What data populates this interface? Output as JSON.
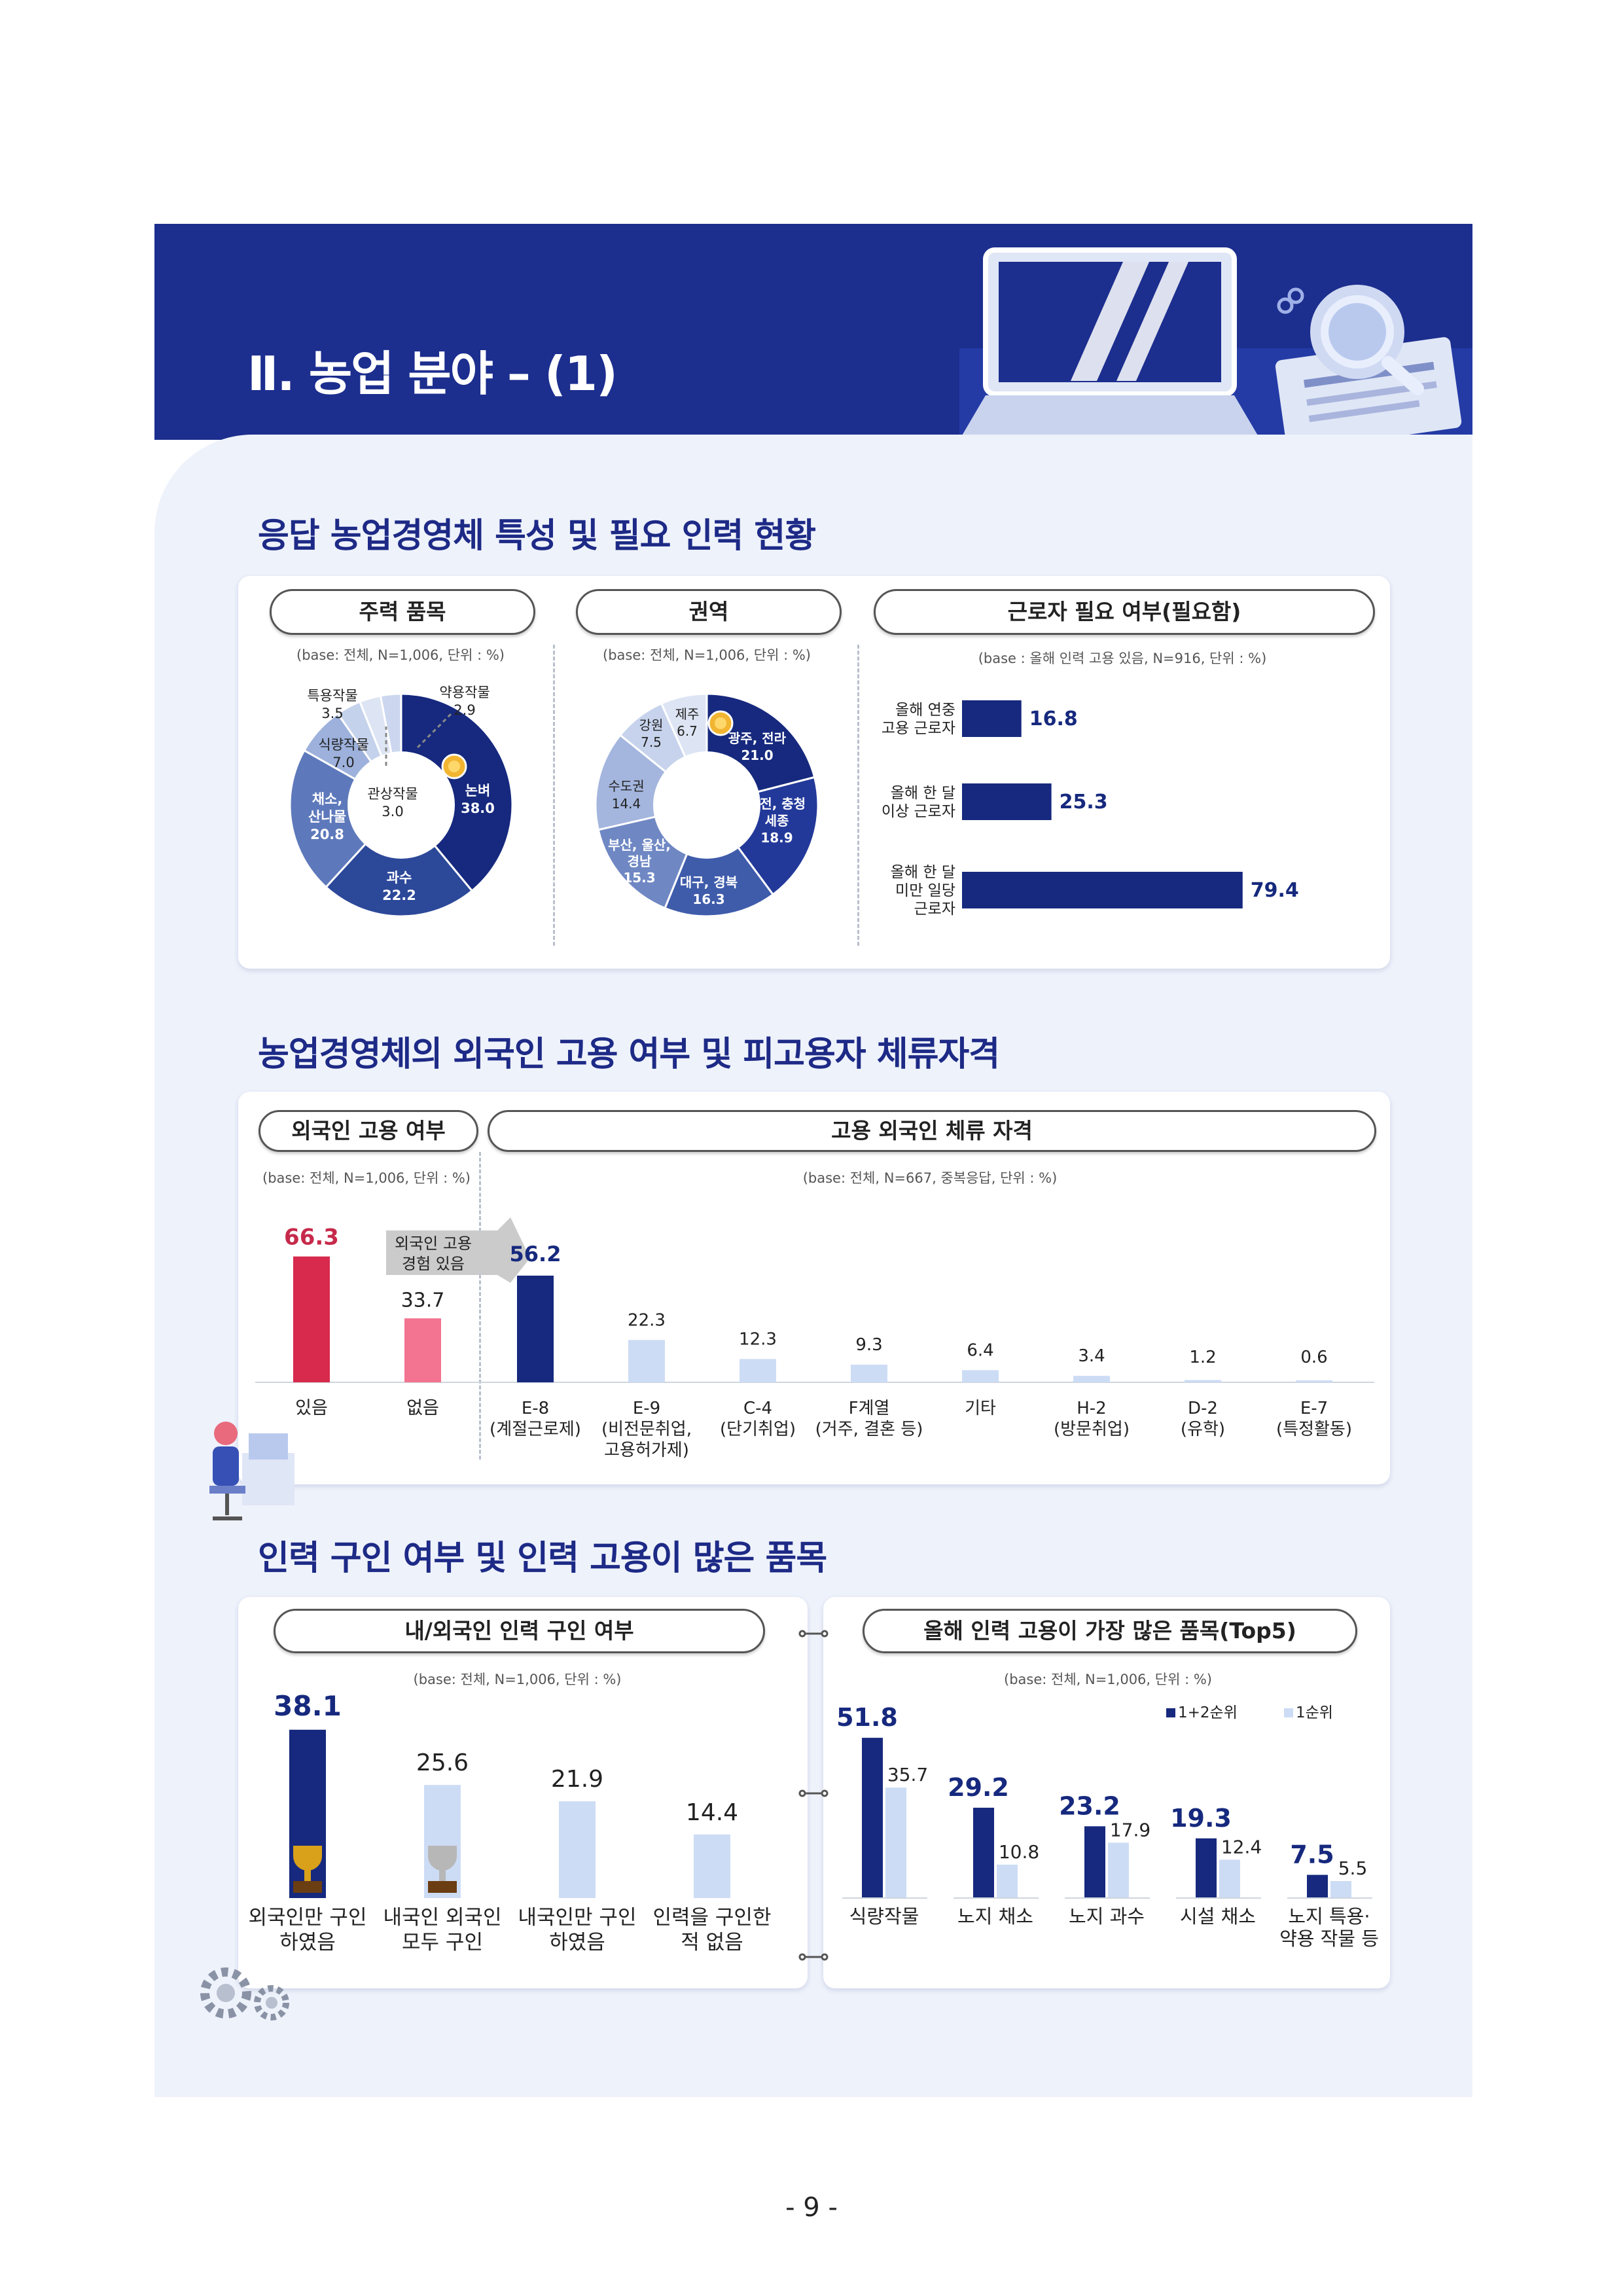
{
  "header": {
    "title": "Ⅱ. 농업 분야 – (1)"
  },
  "sections": {
    "s1": "응답 농업경영체 특성 및 필요 인력 현황",
    "s2": "농업경영체의 외국인 고용 여부 및 피고용자 체류자격",
    "s3": "인력 구인 여부 및 인력 고용이 많은 품목"
  },
  "panels": {
    "p1": {
      "title": "주력 품목",
      "base": "(base: 전체,  N=1,006, 단위 : %)"
    },
    "p2": {
      "title": "권역",
      "base": "(base: 전체,  N=1,006, 단위 : %)"
    },
    "p3": {
      "title": "근로자 필요 여부(필요함)",
      "base": "(base : 올해 인력 고용 있음, N=916, 단위 : %)"
    },
    "p4": {
      "title": "외국인 고용 여부",
      "base": "(base: 전체, N=1,006, 단위 : %)"
    },
    "p5": {
      "title": "고용 외국인 체류 자격",
      "base": "(base: 전체, N=667, 중복응답, 단위 : %)"
    },
    "p6": {
      "title": "내/외국인 인력 구인 여부",
      "base": "(base: 전체, N=1,006, 단위 : %)"
    },
    "p7": {
      "title": "올해 인력 고용이 가장 많은 품목(Top5)",
      "base": "(base: 전체, N=1,006, 단위 : %)"
    }
  },
  "chart_data": [
    {
      "type": "pie",
      "title": "주력 품목",
      "slices": [
        {
          "label": "논벼",
          "value": 38.0,
          "color": "#16297e"
        },
        {
          "label": "과수",
          "value": 22.2,
          "color": "#2c4899"
        },
        {
          "label": "채소, 산나물",
          "value": 20.8,
          "color": "#5e79bb"
        },
        {
          "label": "식량작물",
          "value": 7.0,
          "color": "#9db1dc"
        },
        {
          "label": "특용작물",
          "value": 3.5,
          "color": "#c5d2ec"
        },
        {
          "label": "관상작물",
          "value": 3.0,
          "color": "#dde5f4"
        },
        {
          "label": "약용작물",
          "value": 2.9,
          "color": "#ccd7ef"
        }
      ]
    },
    {
      "type": "pie",
      "title": "권역",
      "slices": [
        {
          "label": "광주, 전라",
          "value": 21.0,
          "color": "#16297e"
        },
        {
          "label": "대전, 충청, 세종",
          "value": 18.9,
          "color": "#23399a"
        },
        {
          "label": "대구, 경북",
          "value": 16.3,
          "color": "#3f5cab"
        },
        {
          "label": "부산, 울산, 경남",
          "value": 15.3,
          "color": "#6f88c4"
        },
        {
          "label": "수도권",
          "value": 14.4,
          "color": "#a4b6de"
        },
        {
          "label": "강원",
          "value": 7.5,
          "color": "#c7d3ec"
        },
        {
          "label": "제주",
          "value": 6.7,
          "color": "#dde5f4"
        }
      ]
    },
    {
      "type": "bar",
      "orientation": "horizontal",
      "title": "근로자 필요 여부(필요함)",
      "categories": [
        [
          "올해 연중",
          "고용 근로자"
        ],
        [
          "올해 한 달",
          "이상 근로자"
        ],
        [
          "올해 한 달",
          "미만 일당",
          "근로자"
        ]
      ],
      "values": [
        16.8,
        25.3,
        79.4
      ]
    },
    {
      "type": "bar",
      "title": "외국인 고용 여부",
      "categories": [
        "있음",
        "없음"
      ],
      "values": [
        66.3,
        33.7
      ],
      "callout": "외국인 고용 경험 있음"
    },
    {
      "type": "bar",
      "title": "고용 외국인 체류 자격",
      "categories": [
        [
          "E-8",
          "(계절근로제)"
        ],
        [
          "E-9",
          "(비전문취업,",
          "고용허가제)"
        ],
        [
          "C-4",
          "(단기취업)"
        ],
        [
          "F계열",
          "(거주, 결혼 등)"
        ],
        [
          "기타"
        ],
        [
          "H-2",
          "(방문취업)"
        ],
        [
          "D-2",
          "(유학)"
        ],
        [
          "E-7",
          "(특정활동)"
        ]
      ],
      "values": [
        56.2,
        22.3,
        12.3,
        9.3,
        6.4,
        3.4,
        1.2,
        0.6
      ]
    },
    {
      "type": "bar",
      "title": "내/외국인 인력 구인 여부",
      "categories": [
        [
          "외국인만 구인",
          "하였음"
        ],
        [
          "내국인 외국인",
          "모두 구인"
        ],
        [
          "내국인만 구인",
          "하였음"
        ],
        [
          "인력을 구인한",
          "적 없음"
        ]
      ],
      "values": [
        38.1,
        25.6,
        21.9,
        14.4
      ]
    },
    {
      "type": "bar",
      "title": "올해 인력 고용이 가장 많은 품목(Top5)",
      "categories": [
        [
          "식량작물"
        ],
        [
          "노지 채소"
        ],
        [
          "노지 과수"
        ],
        [
          "시설 채소"
        ],
        [
          "노지 특용·",
          "약용 작물 등"
        ]
      ],
      "series": [
        {
          "name": "1+2순위",
          "values": [
            51.8,
            29.2,
            23.2,
            19.3,
            7.5
          ],
          "color": "#16297e"
        },
        {
          "name": "1순위",
          "values": [
            35.7,
            10.8,
            17.9,
            12.4,
            5.5
          ],
          "color": "#cddcf5"
        }
      ]
    }
  ],
  "page_number": "- 9 -"
}
